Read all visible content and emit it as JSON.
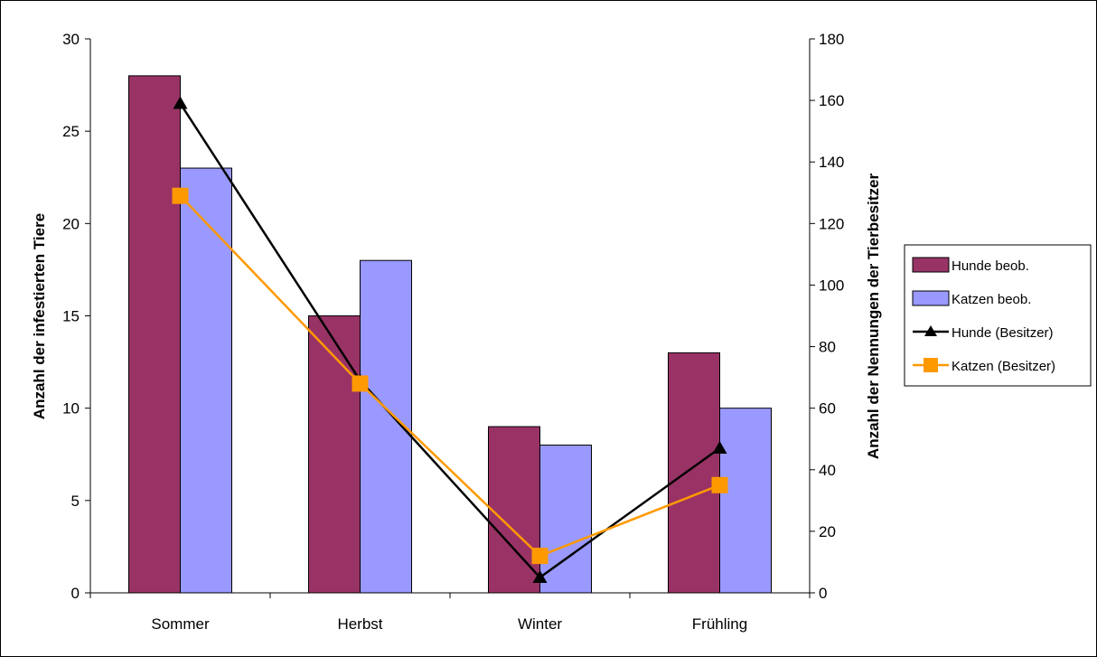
{
  "chart_data": {
    "type": "bar",
    "categories": [
      "Sommer",
      "Herbst",
      "Winter",
      "Frühling"
    ],
    "series": [
      {
        "name": "Hunde beob.",
        "kind": "bar",
        "axis": "left",
        "color": "#993366",
        "values": [
          28,
          15,
          9,
          13
        ]
      },
      {
        "name": "Katzen beob.",
        "kind": "bar",
        "axis": "left",
        "color": "#9999ff",
        "values": [
          23,
          18,
          8,
          10
        ]
      },
      {
        "name": "Hunde (Besitzer)",
        "kind": "line",
        "marker": "triangle",
        "axis": "right",
        "color": "#000000",
        "values": [
          159,
          69,
          5,
          47
        ]
      },
      {
        "name": "Katzen (Besitzer)",
        "kind": "line",
        "marker": "square",
        "axis": "right",
        "color": "#ff9900",
        "values": [
          129,
          68,
          12,
          35
        ]
      }
    ],
    "ylabel": "Anzahl der infestierten Tiere",
    "y2label": "Anzahl der Nennungen der Tierbesitzer",
    "ylim": [
      0,
      30
    ],
    "yticks": [
      0,
      5,
      10,
      15,
      20,
      25,
      30
    ],
    "y2lim": [
      0,
      180
    ],
    "y2ticks": [
      0,
      20,
      40,
      60,
      80,
      100,
      120,
      140,
      160,
      180
    ],
    "grid": false,
    "legend": "right"
  }
}
